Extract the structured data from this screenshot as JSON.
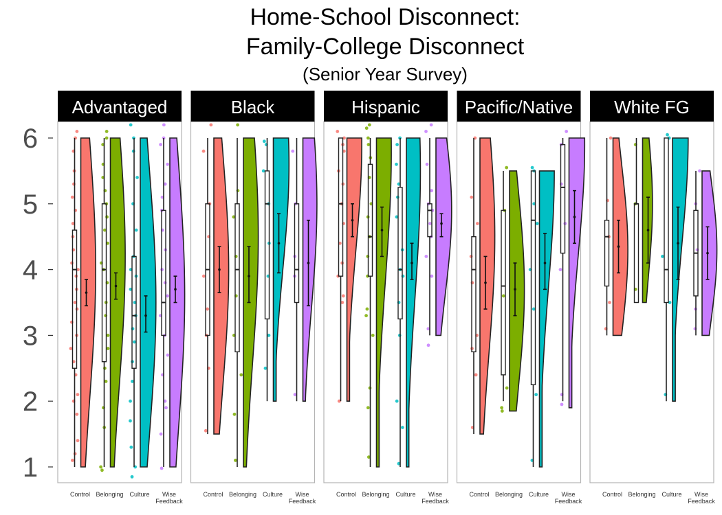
{
  "chart_data": {
    "type": "raincloud",
    "title": {
      "line1": "Home-School Disconnect:",
      "line2": "Family-College Disconnect",
      "subtitle": "(Senior Year Survey)"
    },
    "y_ticks": [
      1,
      2,
      3,
      4,
      5,
      6
    ],
    "ylim": [
      1,
      6
    ],
    "grid": false,
    "conditions": [
      {
        "label": "Control",
        "color": "#F8766D"
      },
      {
        "label": "Belonging",
        "color": "#7CAE00"
      },
      {
        "label": "Culture",
        "color": "#00BFC4"
      },
      {
        "label": "Wise\nFeedback",
        "color": "#C77CFF"
      }
    ],
    "panels": [
      {
        "name": "Advantaged",
        "groups": [
          {
            "condition": "Control",
            "min": 1,
            "q1": 2.5,
            "median": 4,
            "q3": 4.6,
            "max": 6,
            "mean": 3.65,
            "ci_low": 3.45,
            "ci_high": 3.85,
            "density": {
              "lo": 1,
              "hi": 6,
              "mode": 4.0,
              "width": 0.9
            },
            "points": [
              1.1,
              1.2,
              1.4,
              1.8,
              2.0,
              2.1,
              2.4,
              2.6,
              2.8,
              3.0,
              3.2,
              3.4,
              3.5,
              3.7,
              3.9,
              4.0,
              4.1,
              4.3,
              4.5,
              4.7,
              4.9,
              5.1,
              5.3,
              5.5,
              5.8,
              6.0,
              6.1
            ]
          },
          {
            "condition": "Belonging",
            "min": 1,
            "q1": 2.6,
            "median": 4,
            "q3": 5,
            "max": 6,
            "mean": 3.75,
            "ci_low": 3.55,
            "ci_high": 3.95,
            "density": {
              "lo": 1,
              "hi": 6,
              "mode": 4.2,
              "width": 0.9
            },
            "points": [
              0.95,
              1.0,
              1.6,
              1.9,
              2.3,
              2.5,
              2.8,
              3.0,
              3.3,
              3.5,
              3.8,
              4.0,
              4.1,
              4.4,
              4.6,
              4.8,
              5.0,
              5.2,
              5.4,
              5.6,
              5.9,
              6.0,
              6.1
            ]
          },
          {
            "condition": "Culture",
            "min": 1,
            "q1": 2.5,
            "median": 3.3,
            "q3": 4.2,
            "max": 6,
            "mean": 3.3,
            "ci_low": 3.05,
            "ci_high": 3.6,
            "density": {
              "lo": 1,
              "hi": 6,
              "mode": 3.5,
              "width": 0.95
            },
            "points": [
              0.85,
              1.0,
              1.3,
              1.7,
              2.0,
              2.3,
              2.6,
              2.9,
              3.1,
              3.3,
              3.5,
              3.7,
              3.9,
              4.0,
              4.2,
              4.6,
              5.0,
              5.4,
              5.8,
              6.0,
              6.2
            ]
          },
          {
            "condition": "Wise\nFeedback",
            "min": 1,
            "q1": 3,
            "median": 3.5,
            "q3": 4.9,
            "max": 6,
            "mean": 3.7,
            "ci_low": 3.5,
            "ci_high": 3.9,
            "density": {
              "lo": 1,
              "hi": 6,
              "mode": 3.6,
              "width": 0.9
            },
            "points": [
              0.98,
              1.5,
              1.9,
              2.0,
              2.4,
              2.7,
              3.0,
              3.3,
              3.6,
              3.8,
              4.0,
              4.3,
              4.6,
              4.9,
              5.1,
              5.3,
              5.6,
              5.9,
              6.0,
              6.2
            ]
          }
        ]
      },
      {
        "name": "Black",
        "groups": [
          {
            "condition": "Control",
            "min": 1.5,
            "q1": 3,
            "median": 4,
            "q3": 5,
            "max": 6,
            "mean": 4.0,
            "ci_low": 3.65,
            "ci_high": 4.35,
            "density": {
              "lo": 1.5,
              "hi": 6,
              "mode": 4.0,
              "width": 0.9
            },
            "points": [
              1.55,
              2.5,
              3.0,
              3.4,
              3.9,
              4.5,
              5.0,
              5.8,
              6.2
            ]
          },
          {
            "condition": "Belonging",
            "min": 1,
            "q1": 2.75,
            "median": 4,
            "q3": 5,
            "max": 6,
            "mean": 3.9,
            "ci_low": 3.5,
            "ci_high": 4.35,
            "density": {
              "lo": 1,
              "hi": 6,
              "mode": 4.5,
              "width": 0.9
            },
            "points": [
              1.1,
              1.8,
              2.4,
              3.0,
              3.6,
              4.2,
              4.8,
              5.2,
              6.2
            ]
          },
          {
            "condition": "Culture",
            "min": 2,
            "q1": 3.25,
            "median": 5,
            "q3": 5.5,
            "max": 6,
            "mean": 4.4,
            "ci_low": 3.95,
            "ci_high": 4.85,
            "density": {
              "lo": 2,
              "hi": 6,
              "mode": 5.6,
              "width": 0.95
            },
            "points": [
              2.5,
              3.0,
              3.9,
              4.4,
              5.0,
              5.5,
              5.9,
              5.95
            ]
          },
          {
            "condition": "Wise\nFeedback",
            "min": 2,
            "q1": 3.5,
            "median": 4,
            "q3": 5,
            "max": 6,
            "mean": 4.1,
            "ci_low": 3.45,
            "ci_high": 4.75,
            "density": {
              "lo": 2,
              "hi": 6,
              "mode": 5.0,
              "width": 0.85
            },
            "points": [
              2.1,
              3.9,
              4.2,
              5.0,
              5.8
            ]
          }
        ]
      },
      {
        "name": "Hispanic",
        "groups": [
          {
            "condition": "Control",
            "min": 2,
            "q1": 3.9,
            "median": 5,
            "q3": 6,
            "max": 6,
            "mean": 4.75,
            "ci_low": 4.5,
            "ci_high": 5.0,
            "density": {
              "lo": 2,
              "hi": 6,
              "mode": 5.9,
              "width": 0.9
            },
            "points": [
              2.0,
              3.5,
              3.6,
              3.9,
              4.1,
              4.4,
              4.7,
              5.0,
              5.3,
              5.5,
              5.8,
              5.9,
              6.0,
              6.1
            ]
          },
          {
            "condition": "Belonging",
            "min": 1,
            "q1": 3.9,
            "median": 4.5,
            "q3": 5.6,
            "max": 6,
            "mean": 4.6,
            "ci_low": 4.2,
            "ci_high": 4.95,
            "density": {
              "lo": 1,
              "hi": 6,
              "mode": 5.8,
              "width": 0.9
            },
            "points": [
              1.15,
              1.9,
              2.2,
              3.0,
              3.3,
              3.4,
              3.9,
              4.2,
              4.5,
              4.8,
              5.0,
              5.4,
              5.7,
              5.9,
              6.0,
              6.15,
              6.2
            ]
          },
          {
            "condition": "Culture",
            "min": 1,
            "q1": 3.25,
            "median": 4,
            "q3": 5.25,
            "max": 6,
            "mean": 4.1,
            "ci_low": 3.85,
            "ci_high": 4.4,
            "density": {
              "lo": 1,
              "hi": 6,
              "mode": 5.5,
              "width": 0.85
            },
            "points": [
              1.05,
              1.6,
              2.0,
              3.0,
              3.5,
              3.9,
              4.0,
              4.3,
              4.8,
              5.1,
              5.3,
              5.6,
              5.9,
              6.0
            ]
          },
          {
            "condition": "Wise\nFeedback",
            "min": 3,
            "q1": 4.5,
            "median": 4.9,
            "q3": 5,
            "max": 6,
            "mean": 4.7,
            "ci_low": 4.5,
            "ci_high": 4.85,
            "density": {
              "lo": 3,
              "hi": 6,
              "mode": 4.9,
              "width": 0.95
            },
            "points": [
              2.85,
              3.1,
              3.9,
              4.2,
              4.5,
              4.7,
              4.9,
              5.0,
              5.2,
              5.6,
              6.1,
              6.2
            ]
          }
        ]
      },
      {
        "name": "Pacific/Native",
        "groups": [
          {
            "condition": "Control",
            "min": 1.5,
            "q1": 2.75,
            "median": 4,
            "q3": 4.5,
            "max": 6,
            "mean": 3.8,
            "ci_low": 3.4,
            "ci_high": 4.2,
            "density": {
              "lo": 1.5,
              "hi": 6,
              "mode": 4.5,
              "width": 0.9
            },
            "points": [
              1.6,
              2.4,
              2.8,
              3.0,
              3.8,
              4.2,
              4.7,
              5.1,
              6.0
            ]
          },
          {
            "condition": "Belonging",
            "min": 2,
            "q1": 2.4,
            "median": 3.75,
            "q3": 4.9,
            "max": 5.5,
            "mean": 3.7,
            "ci_low": 3.3,
            "ci_high": 4.1,
            "density": {
              "lo": 1.85,
              "hi": 5.5,
              "mode": 3.7,
              "width": 0.9
            },
            "points": [
              1.85,
              1.9,
              2.2,
              3.6,
              4.9,
              5.55
            ]
          },
          {
            "condition": "Culture",
            "min": 1,
            "q1": 2.25,
            "median": 4.75,
            "q3": 5.5,
            "max": 5.5,
            "mean": 4.1,
            "ci_low": 3.7,
            "ci_high": 4.55,
            "density": {
              "lo": 1,
              "hi": 5.5,
              "mode": 5.5,
              "width": 0.9
            },
            "points": [
              1.1,
              2.1,
              3.4,
              4.0,
              4.7,
              5.0,
              5.5,
              5.55
            ]
          },
          {
            "condition": "Wise\nFeedback",
            "min": 2,
            "q1": 4.25,
            "median": 5.25,
            "q3": 5.9,
            "max": 6,
            "mean": 4.8,
            "ci_low": 4.4,
            "ci_high": 5.2,
            "density": {
              "lo": 1.9,
              "hi": 6,
              "mode": 5.9,
              "width": 0.95
            },
            "points": [
              1.95,
              2.1,
              4.0,
              4.7,
              5.3,
              5.9,
              6.1
            ]
          }
        ]
      },
      {
        "name": "White FG",
        "groups": [
          {
            "condition": "Control",
            "min": 3,
            "q1": 3.75,
            "median": 4.5,
            "q3": 4.75,
            "max": 6,
            "mean": 4.35,
            "ci_low": 3.95,
            "ci_high": 4.75,
            "density": {
              "lo": 3,
              "hi": 6,
              "mode": 4.3,
              "width": 0.9
            },
            "points": [
              3.1,
              3.5,
              4.5,
              5.05,
              6.0
            ]
          },
          {
            "condition": "Belonging",
            "min": 3.5,
            "q1": 3.5,
            "median": 5,
            "q3": 5,
            "max": 6,
            "mean": 4.6,
            "ci_low": 4.1,
            "ci_high": 5.1,
            "density": {
              "lo": 3.5,
              "hi": 6,
              "mode": 5.0,
              "width": 0.6
            },
            "points": [
              3.7,
              5.0,
              5.9
            ]
          },
          {
            "condition": "Culture",
            "min": 2,
            "q1": 3.5,
            "median": 4,
            "q3": 6,
            "max": 6,
            "mean": 4.4,
            "ci_low": 3.85,
            "ci_high": 4.95,
            "density": {
              "lo": 2,
              "hi": 6,
              "mode": 6.0,
              "width": 0.95
            },
            "points": [
              2.1,
              3.5,
              4.2,
              6.0,
              6.05
            ]
          },
          {
            "condition": "Wise\nFeedback",
            "min": 3,
            "q1": 3.6,
            "median": 4.25,
            "q3": 4.9,
            "max": 5.5,
            "mean": 4.25,
            "ci_low": 3.85,
            "ci_high": 4.65,
            "density": {
              "lo": 3,
              "hi": 5.5,
              "mode": 4.3,
              "width": 0.9
            },
            "points": [
              3.1,
              3.4,
              4.3,
              5.0,
              5.5
            ]
          }
        ]
      }
    ]
  }
}
